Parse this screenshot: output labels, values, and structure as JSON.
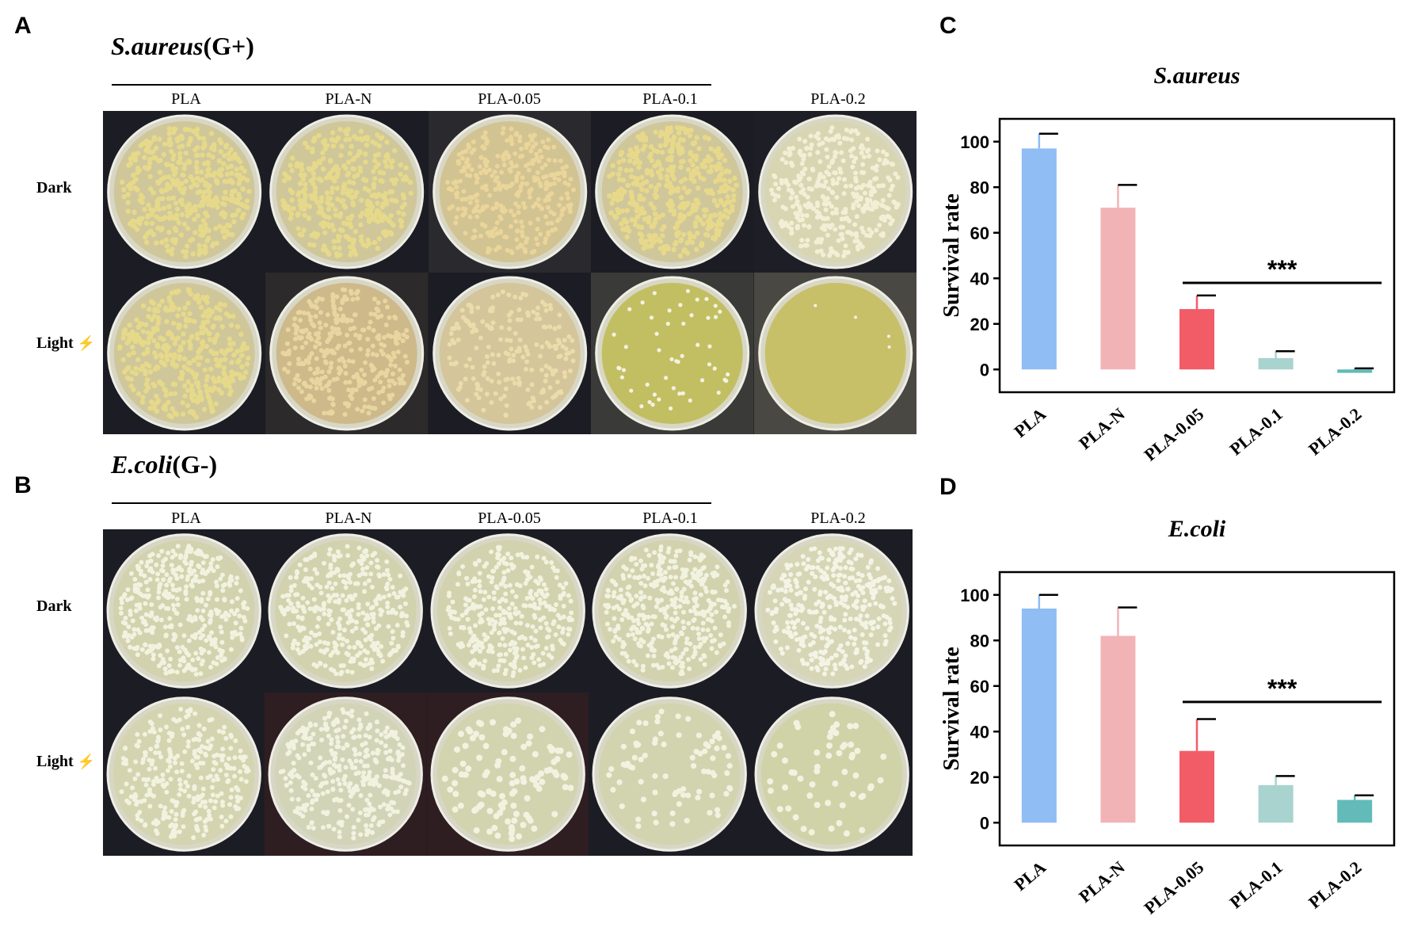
{
  "panels": {
    "A": {
      "letter": "A",
      "species": "S.aureus",
      "gram": "(G+)"
    },
    "B": {
      "letter": "B",
      "species": "E.coli",
      "gram": "(G-)"
    },
    "C": {
      "letter": "C"
    },
    "D": {
      "letter": "D"
    }
  },
  "plate_columns": [
    "PLA",
    "PLA-N",
    "PLA-0.05",
    "PLA-0.1",
    "PLA-0.2"
  ],
  "row_labels": {
    "dark": "Dark",
    "light": "Light"
  },
  "colors": {
    "PLA": "#8fbdf4",
    "PLA-N": "#f2b3b6",
    "PLA-0.05": "#f25c66",
    "PLA-0.1": "#a9d3cf",
    "PLA-0.2": "#62bbb8",
    "bolt": "#e8a317"
  },
  "chart_data": [
    {
      "type": "bar",
      "title": "S.aureus",
      "ylabel": "Survival rate",
      "xlabel": "",
      "categories": [
        "PLA",
        "PLA-N",
        "PLA-0.05",
        "PLA-0.1",
        "PLA-0.2"
      ],
      "values": [
        97,
        71,
        26.5,
        5,
        -1.5
      ],
      "errors": [
        6.5,
        10,
        6,
        3,
        2
      ],
      "ylim": [
        -10,
        110
      ],
      "yticks": [
        0,
        20,
        40,
        60,
        80,
        100
      ],
      "significance": {
        "label": "***",
        "from": "PLA-0.05",
        "to": "PLA-0.2",
        "y": 38
      }
    },
    {
      "type": "bar",
      "title": "E.coli",
      "ylabel": "Survival rate",
      "xlabel": "",
      "categories": [
        "PLA",
        "PLA-N",
        "PLA-0.05",
        "PLA-0.1",
        "PLA-0.2"
      ],
      "values": [
        94,
        82,
        31.5,
        16.5,
        10
      ],
      "errors": [
        6,
        12.5,
        14,
        4,
        2
      ],
      "ylim": [
        -10,
        110
      ],
      "yticks": [
        0,
        20,
        40,
        60,
        80,
        100
      ],
      "significance": {
        "label": "***",
        "from": "PLA-0.05",
        "to": "PLA-0.2",
        "y": 53
      }
    }
  ]
}
